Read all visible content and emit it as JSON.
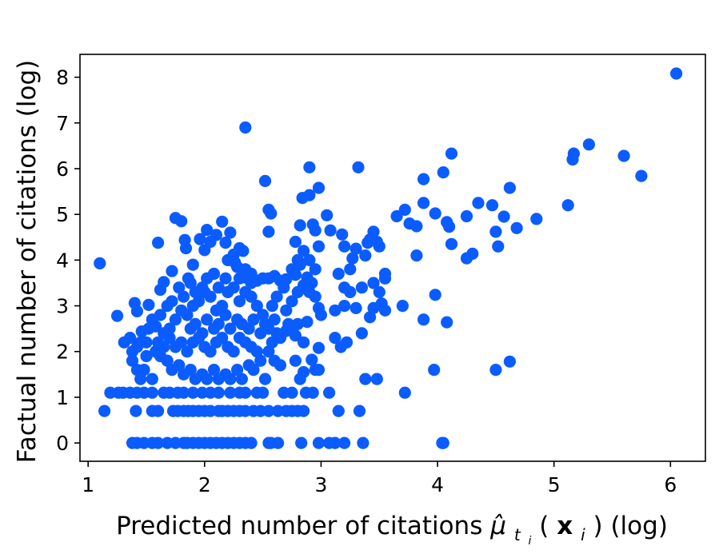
{
  "chart_data": {
    "type": "scatter",
    "xlabel": "Predicted number of citations μ̂_{t_i}(x_i) (log)",
    "xlabel_parts": {
      "prefix": "Predicted number of citations ",
      "mu": "μ̂",
      "sub_t": "t",
      "sub_i": "i",
      "open": "(",
      "x": "x",
      "x_sub": "i",
      "suffix": ") (log)"
    },
    "ylabel": "Factual number of citations (log)",
    "xlim": [
      0.93,
      6.3
    ],
    "ylim": [
      -0.4,
      8.5
    ],
    "xticks": [
      1,
      2,
      3,
      4,
      5,
      6
    ],
    "yticks": [
      0,
      1,
      2,
      3,
      4,
      5,
      6,
      7,
      8
    ],
    "marker_color": "#0b5cff",
    "grid": false,
    "points": [
      [
        1.1,
        3.93
      ],
      [
        6.05,
        8.08
      ],
      [
        2.35,
        6.9
      ],
      [
        5.6,
        6.28
      ],
      [
        5.75,
        5.84
      ],
      [
        5.3,
        6.53
      ],
      [
        5.17,
        6.33
      ],
      [
        5.16,
        6.2
      ],
      [
        5.12,
        5.2
      ],
      [
        4.85,
        4.9
      ],
      [
        4.68,
        4.7
      ],
      [
        4.62,
        5.58
      ],
      [
        4.57,
        4.95
      ],
      [
        4.52,
        4.3
      ],
      [
        4.5,
        4.62
      ],
      [
        4.47,
        5.2
      ],
      [
        4.35,
        5.25
      ],
      [
        4.3,
        4.14
      ],
      [
        4.25,
        4.04
      ],
      [
        4.25,
        4.96
      ],
      [
        4.12,
        6.33
      ],
      [
        4.1,
        4.73
      ],
      [
        4.08,
        4.83
      ],
      [
        4.12,
        4.35
      ],
      [
        4.05,
        5.92
      ],
      [
        3.98,
        5.02
      ],
      [
        3.88,
        5.25
      ],
      [
        3.88,
        5.77
      ],
      [
        3.82,
        4.74
      ],
      [
        3.82,
        4.1
      ],
      [
        3.76,
        4.8
      ],
      [
        3.72,
        5.1
      ],
      [
        3.65,
        4.96
      ],
      [
        3.98,
        3.24
      ],
      [
        3.88,
        2.7
      ],
      [
        4.08,
        2.64
      ],
      [
        4.62,
        1.78
      ],
      [
        4.5,
        1.6
      ],
      [
        3.97,
        1.6
      ],
      [
        3.72,
        1.1
      ],
      [
        4.04,
        0.0
      ],
      [
        4.05,
        0.0
      ],
      [
        3.36,
        0.0
      ],
      [
        3.33,
        0.7
      ],
      [
        3.2,
        0.0
      ],
      [
        3.12,
        0.0
      ],
      [
        3.07,
        0.0
      ],
      [
        2.98,
        0.0
      ],
      [
        2.83,
        0.0
      ],
      [
        2.63,
        0.0
      ],
      [
        2.55,
        0.0
      ],
      [
        3.32,
        6.03
      ],
      [
        2.9,
        6.03
      ],
      [
        2.98,
        5.58
      ],
      [
        2.9,
        5.42
      ],
      [
        2.84,
        5.36
      ],
      [
        2.52,
        5.73
      ],
      [
        2.55,
        5.1
      ],
      [
        2.57,
        5.02
      ],
      [
        2.55,
        4.62
      ],
      [
        3.05,
        4.98
      ],
      [
        2.93,
        4.78
      ],
      [
        2.82,
        4.76
      ],
      [
        3.08,
        4.65
      ],
      [
        3.18,
        4.56
      ],
      [
        2.95,
        4.65
      ],
      [
        2.78,
        4.4
      ],
      [
        2.98,
        4.3
      ],
      [
        3.2,
        4.3
      ],
      [
        3.3,
        4.25
      ],
      [
        3.4,
        4.38
      ],
      [
        3.45,
        4.62
      ],
      [
        3.42,
        4.45
      ],
      [
        3.48,
        4.4
      ],
      [
        3.5,
        4.3
      ],
      [
        3.38,
        4.1
      ],
      [
        3.27,
        4.04
      ],
      [
        3.25,
        3.8
      ],
      [
        3.15,
        3.7
      ],
      [
        3.2,
        3.4
      ],
      [
        3.25,
        3.3
      ],
      [
        3.35,
        3.4
      ],
      [
        3.45,
        3.5
      ],
      [
        3.55,
        3.7
      ],
      [
        3.55,
        3.6
      ],
      [
        3.5,
        3.3
      ],
      [
        3.52,
        3.05
      ],
      [
        3.55,
        2.9
      ],
      [
        3.7,
        3.0
      ],
      [
        3.45,
        2.95
      ],
      [
        3.3,
        2.95
      ],
      [
        3.2,
        3.0
      ],
      [
        3.12,
        2.9
      ],
      [
        3.12,
        2.3
      ],
      [
        3.17,
        2.1
      ],
      [
        3.22,
        2.2
      ],
      [
        3.35,
        2.4
      ],
      [
        3.42,
        2.75
      ],
      [
        3.38,
        1.4
      ],
      [
        3.48,
        1.4
      ],
      [
        3.07,
        1.1
      ],
      [
        2.93,
        1.1
      ],
      [
        2.87,
        1.1
      ],
      [
        2.75,
        1.1
      ],
      [
        2.68,
        1.1
      ],
      [
        2.5,
        1.1
      ],
      [
        2.45,
        1.1
      ],
      [
        2.35,
        1.1
      ],
      [
        2.3,
        1.1
      ],
      [
        2.22,
        1.1
      ],
      [
        2.12,
        1.1
      ],
      [
        2.05,
        1.1
      ],
      [
        1.98,
        1.1
      ],
      [
        1.9,
        1.1
      ],
      [
        1.82,
        1.1
      ],
      [
        1.77,
        1.1
      ],
      [
        1.7,
        1.1
      ],
      [
        1.65,
        1.1
      ],
      [
        1.55,
        1.1
      ],
      [
        1.48,
        1.1
      ],
      [
        1.42,
        1.1
      ],
      [
        1.36,
        1.1
      ],
      [
        1.3,
        1.1
      ],
      [
        1.26,
        1.1
      ],
      [
        1.19,
        1.1
      ],
      [
        1.14,
        0.7
      ],
      [
        1.41,
        0.7
      ],
      [
        1.55,
        0.7
      ],
      [
        1.6,
        0.7
      ],
      [
        1.73,
        0.7
      ],
      [
        1.77,
        0.7
      ],
      [
        1.82,
        0.7
      ],
      [
        1.86,
        0.7
      ],
      [
        1.9,
        0.7
      ],
      [
        1.95,
        0.7
      ],
      [
        2.0,
        0.7
      ],
      [
        2.05,
        0.7
      ],
      [
        2.12,
        0.7
      ],
      [
        2.15,
        0.7
      ],
      [
        2.2,
        0.7
      ],
      [
        2.25,
        0.7
      ],
      [
        2.3,
        0.7
      ],
      [
        2.35,
        0.7
      ],
      [
        2.42,
        0.7
      ],
      [
        2.48,
        0.7
      ],
      [
        2.55,
        0.7
      ],
      [
        2.63,
        0.7
      ],
      [
        2.7,
        0.7
      ],
      [
        2.75,
        0.7
      ],
      [
        2.8,
        0.7
      ],
      [
        2.85,
        0.7
      ],
      [
        3.15,
        0.7
      ],
      [
        2.57,
        0.0
      ],
      [
        2.4,
        0.0
      ],
      [
        2.35,
        0.0
      ],
      [
        2.3,
        0.0
      ],
      [
        2.25,
        0.0
      ],
      [
        2.2,
        0.0
      ],
      [
        2.15,
        0.0
      ],
      [
        2.1,
        0.0
      ],
      [
        2.05,
        0.0
      ],
      [
        2.0,
        0.0
      ],
      [
        1.95,
        0.0
      ],
      [
        1.9,
        0.0
      ],
      [
        1.85,
        0.0
      ],
      [
        1.82,
        0.0
      ],
      [
        1.75,
        0.0
      ],
      [
        1.68,
        0.0
      ],
      [
        1.6,
        0.0
      ],
      [
        1.55,
        0.0
      ],
      [
        1.48,
        0.0
      ],
      [
        1.42,
        0.0
      ],
      [
        1.38,
        0.0
      ],
      [
        1.25,
        2.78
      ],
      [
        1.31,
        2.2
      ],
      [
        1.36,
        2.3
      ],
      [
        1.38,
        2.0
      ],
      [
        1.4,
        3.06
      ],
      [
        1.42,
        2.88
      ],
      [
        1.46,
        2.44
      ],
      [
        1.5,
        2.2
      ],
      [
        1.52,
        3.02
      ],
      [
        1.48,
        1.6
      ],
      [
        1.55,
        1.4
      ],
      [
        1.6,
        4.38
      ],
      [
        1.58,
        2.55
      ],
      [
        1.62,
        3.35
      ],
      [
        1.65,
        3.52
      ],
      [
        1.72,
        3.76
      ],
      [
        1.75,
        4.92
      ],
      [
        1.8,
        4.85
      ],
      [
        1.83,
        4.44
      ],
      [
        1.84,
        4.26
      ],
      [
        1.86,
        3.6
      ],
      [
        1.9,
        3.9
      ],
      [
        1.96,
        4.46
      ],
      [
        2.0,
        4.22
      ],
      [
        2.02,
        4.66
      ],
      [
        2.05,
        4.4
      ],
      [
        2.1,
        4.55
      ],
      [
        2.15,
        4.84
      ],
      [
        2.18,
        4.38
      ],
      [
        2.22,
        4.6
      ],
      [
        2.25,
        4.12
      ],
      [
        2.3,
        4.26
      ],
      [
        2.33,
        4.2
      ],
      [
        2.2,
        4.0
      ],
      [
        2.26,
        3.95
      ],
      [
        2.28,
        3.85
      ],
      [
        2.35,
        3.62
      ],
      [
        2.4,
        3.7
      ],
      [
        2.45,
        3.55
      ],
      [
        2.5,
        3.6
      ],
      [
        2.55,
        3.6
      ],
      [
        2.6,
        3.65
      ],
      [
        2.65,
        3.55
      ],
      [
        2.7,
        3.58
      ],
      [
        2.78,
        3.68
      ],
      [
        2.82,
        3.9
      ],
      [
        2.88,
        3.62
      ],
      [
        2.92,
        3.5
      ],
      [
        2.95,
        3.2
      ],
      [
        2.98,
        2.95
      ],
      [
        3.0,
        2.8
      ],
      [
        2.88,
        2.65
      ],
      [
        2.8,
        2.6
      ],
      [
        2.75,
        2.55
      ],
      [
        2.7,
        2.45
      ],
      [
        2.62,
        2.4
      ],
      [
        2.58,
        2.2
      ],
      [
        2.55,
        2.0
      ],
      [
        2.6,
        1.8
      ],
      [
        2.65,
        1.7
      ],
      [
        2.78,
        1.8
      ],
      [
        2.85,
        1.55
      ],
      [
        2.82,
        1.4
      ],
      [
        2.95,
        1.6
      ],
      [
        2.98,
        1.6
      ],
      [
        2.92,
        1.82
      ],
      [
        2.98,
        2.08
      ],
      [
        2.85,
        2.2
      ],
      [
        2.78,
        2.35
      ],
      [
        2.72,
        2.6
      ],
      [
        2.7,
        2.9
      ],
      [
        2.75,
        3.1
      ],
      [
        2.8,
        3.3
      ],
      [
        2.85,
        3.45
      ],
      [
        2.9,
        3.3
      ],
      [
        2.95,
        3.8
      ],
      [
        2.9,
        4.0
      ],
      [
        2.85,
        4.2
      ],
      [
        2.8,
        4.0
      ],
      [
        2.75,
        3.8
      ],
      [
        2.68,
        3.4
      ],
      [
        2.62,
        3.2
      ],
      [
        2.58,
        3.0
      ],
      [
        2.5,
        2.8
      ],
      [
        2.45,
        3.0
      ],
      [
        2.4,
        3.2
      ],
      [
        2.35,
        3.3
      ],
      [
        2.3,
        3.1
      ],
      [
        2.25,
        3.4
      ],
      [
        2.2,
        3.3
      ],
      [
        2.15,
        3.0
      ],
      [
        2.1,
        2.9
      ],
      [
        2.05,
        3.2
      ],
      [
        2.0,
        3.3
      ],
      [
        1.95,
        3.1
      ],
      [
        1.9,
        3.0
      ],
      [
        1.85,
        2.8
      ],
      [
        1.8,
        2.9
      ],
      [
        1.75,
        2.7
      ],
      [
        1.7,
        2.5
      ],
      [
        1.65,
        2.4
      ],
      [
        1.6,
        2.2
      ],
      [
        1.58,
        2.0
      ],
      [
        1.62,
        1.9
      ],
      [
        1.68,
        1.8
      ],
      [
        1.72,
        1.6
      ],
      [
        1.78,
        1.7
      ],
      [
        1.82,
        1.5
      ],
      [
        1.88,
        1.6
      ],
      [
        1.92,
        1.4
      ],
      [
        1.98,
        1.5
      ],
      [
        2.02,
        1.4
      ],
      [
        2.08,
        1.6
      ],
      [
        2.12,
        1.4
      ],
      [
        2.18,
        1.5
      ],
      [
        2.22,
        1.4
      ],
      [
        2.28,
        1.6
      ],
      [
        2.32,
        1.4
      ],
      [
        2.38,
        1.7
      ],
      [
        2.42,
        1.6
      ],
      [
        2.48,
        1.8
      ],
      [
        2.52,
        1.4
      ],
      [
        2.45,
        2.0
      ],
      [
        2.4,
        2.1
      ],
      [
        2.35,
        2.2
      ],
      [
        2.3,
        2.3
      ],
      [
        2.25,
        2.0
      ],
      [
        2.2,
        2.1
      ],
      [
        2.15,
        2.3
      ],
      [
        2.1,
        2.2
      ],
      [
        2.05,
        2.0
      ],
      [
        2.0,
        2.1
      ],
      [
        1.95,
        2.3
      ],
      [
        1.9,
        2.2
      ],
      [
        1.85,
        2.0
      ],
      [
        1.8,
        2.2
      ],
      [
        1.75,
        2.1
      ],
      [
        1.7,
        2.3
      ],
      [
        1.65,
        2.1
      ],
      [
        1.88,
        2.5
      ],
      [
        1.92,
        2.6
      ],
      [
        1.98,
        2.4
      ],
      [
        2.02,
        2.7
      ],
      [
        2.08,
        2.5
      ],
      [
        2.12,
        2.6
      ],
      [
        2.18,
        2.8
      ],
      [
        2.22,
        2.5
      ],
      [
        2.28,
        2.7
      ],
      [
        2.32,
        2.6
      ],
      [
        2.38,
        2.5
      ],
      [
        2.42,
        2.7
      ],
      [
        2.48,
        2.4
      ],
      [
        2.52,
        2.6
      ],
      [
        2.55,
        2.5
      ],
      [
        2.6,
        2.7
      ],
      [
        2.65,
        2.3
      ],
      [
        2.4,
        3.5
      ],
      [
        2.35,
        3.8
      ],
      [
        2.3,
        3.6
      ],
      [
        2.18,
        3.6
      ],
      [
        2.12,
        3.4
      ],
      [
        2.08,
        3.7
      ],
      [
        2.02,
        3.6
      ],
      [
        1.98,
        3.4
      ],
      [
        1.92,
        3.3
      ],
      [
        1.88,
        3.5
      ],
      [
        1.82,
        3.2
      ],
      [
        1.78,
        3.4
      ],
      [
        1.72,
        3.1
      ],
      [
        1.68,
        3.0
      ],
      [
        1.62,
        2.8
      ],
      [
        1.55,
        2.7
      ],
      [
        1.52,
        2.5
      ],
      [
        1.45,
        2.2
      ],
      [
        1.42,
        2.1
      ],
      [
        1.38,
        1.8
      ],
      [
        1.42,
        1.6
      ],
      [
        1.5,
        1.9
      ],
      [
        1.45,
        1.4
      ]
    ]
  }
}
